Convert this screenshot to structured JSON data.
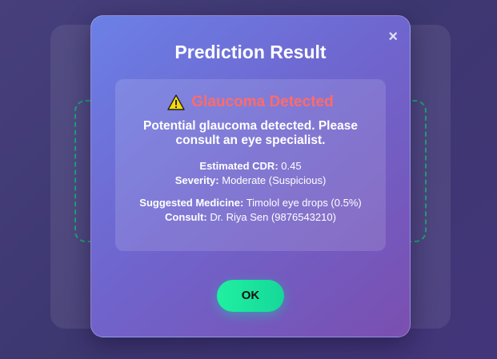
{
  "modal": {
    "title": "Prediction Result",
    "close_label": "×",
    "status": "Glaucoma Detected",
    "message": "Potential glaucoma detected. Please consult an eye specialist.",
    "cdr_label": "Estimated CDR:",
    "cdr_value": "0.45",
    "severity_label": "Severity:",
    "severity_value": "Moderate (Suspicious)",
    "medicine_label": "Suggested Medicine:",
    "medicine_value": "Timolol eye drops (0.5%)",
    "consult_label": "Consult:",
    "consult_value": "Dr. Riya Sen (9876543210)",
    "ok_label": "OK"
  },
  "icons": {
    "status_icon": "warning-icon",
    "close_icon": "close-icon"
  },
  "colors": {
    "status": "#ff6b6b",
    "ok_button": "#1ff0a0",
    "dashed_border": "#1fa373"
  }
}
